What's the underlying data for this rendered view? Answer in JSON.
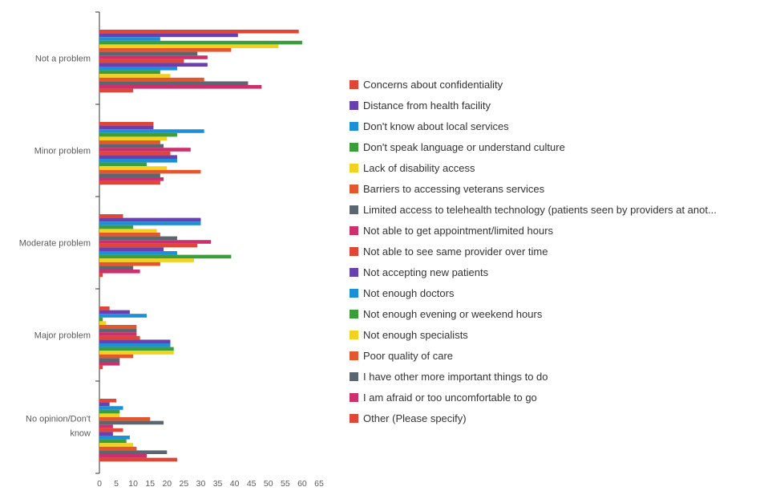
{
  "chart_data": {
    "type": "bar",
    "orientation": "horizontal",
    "categories": [
      "Not a problem",
      "Minor problem",
      "Moderate problem",
      "Major problem",
      "No opinion/Don't know"
    ],
    "xlim": [
      0,
      65
    ],
    "xticks": [
      0,
      5,
      10,
      15,
      20,
      25,
      30,
      35,
      40,
      45,
      50,
      55,
      60,
      65
    ],
    "legend_position": "right",
    "grid": false,
    "series": [
      {
        "name": "Concerns about confidentiality",
        "color": "#e04535",
        "values": [
          59,
          16,
          7,
          3,
          5
        ]
      },
      {
        "name": "Distance from health facility",
        "color": "#6a3fb0",
        "values": [
          41,
          16,
          30,
          9,
          3
        ]
      },
      {
        "name": "Don't know about local services",
        "color": "#1d8fd6",
        "values": [
          18,
          31,
          30,
          14,
          7
        ]
      },
      {
        "name": "Don't speak language or understand culture",
        "color": "#3b9e3b",
        "values": [
          60,
          23,
          10,
          1,
          6
        ]
      },
      {
        "name": "Lack of disability access",
        "color": "#f2d21e",
        "values": [
          53,
          20,
          17,
          2,
          6
        ]
      },
      {
        "name": "Barriers to accessing veterans services",
        "color": "#e4572e",
        "values": [
          39,
          18,
          18,
          11,
          15
        ]
      },
      {
        "name": "Limited access to telehealth technology (patients seen by providers at anot...",
        "color": "#5a6670",
        "values": [
          29,
          19,
          23,
          11,
          19
        ]
      },
      {
        "name": "Not able to get appointment/limited hours",
        "color": "#cc2f6b",
        "values": [
          32,
          27,
          33,
          11,
          4
        ]
      },
      {
        "name": "Not able to see same provider over time",
        "color": "#e04535",
        "values": [
          25,
          21,
          29,
          12,
          7
        ]
      },
      {
        "name": "Not accepting new patients",
        "color": "#6a3fb0",
        "values": [
          32,
          23,
          19,
          21,
          4
        ]
      },
      {
        "name": "Not enough doctors",
        "color": "#1d8fd6",
        "values": [
          23,
          23,
          23,
          21,
          9
        ]
      },
      {
        "name": "Not enough evening or weekend hours",
        "color": "#3b9e3b",
        "values": [
          18,
          14,
          39,
          22,
          8
        ]
      },
      {
        "name": "Not enough specialists",
        "color": "#f2d21e",
        "values": [
          21,
          20,
          28,
          22,
          10
        ]
      },
      {
        "name": "Poor quality of care",
        "color": "#e4572e",
        "values": [
          31,
          30,
          18,
          10,
          11
        ]
      },
      {
        "name": "I have other more important things to do",
        "color": "#5a6670",
        "values": [
          44,
          18,
          10,
          6,
          20
        ]
      },
      {
        "name": "I am afraid or too uncomfortable to go",
        "color": "#cc2f6b",
        "values": [
          48,
          19,
          12,
          6,
          14
        ]
      },
      {
        "name": "Other (Please specify)",
        "color": "#e04535",
        "values": [
          10,
          18,
          1,
          1,
          23
        ]
      }
    ]
  }
}
